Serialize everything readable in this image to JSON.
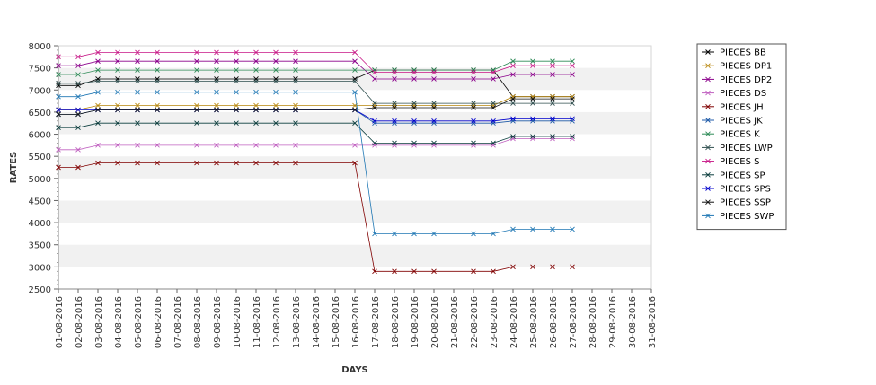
{
  "chart_data": {
    "type": "line",
    "xlabel": "DAYS",
    "ylabel": "RATES",
    "ylim": [
      2500,
      8000
    ],
    "y_ticks": [
      2500,
      3000,
      3500,
      4000,
      4500,
      5000,
      5500,
      6000,
      6500,
      7000,
      7500,
      8000
    ],
    "grid": "alternating horizontal bands",
    "legend_position": "right",
    "x_ticks": [
      "01-08-2016",
      "02-08-2016",
      "03-08-2016",
      "04-08-2016",
      "05-08-2016",
      "06-08-2016",
      "07-08-2016",
      "08-08-2016",
      "09-08-2016",
      "10-08-2016",
      "11-08-2016",
      "12-08-2016",
      "13-08-2016",
      "14-08-2016",
      "15-08-2016",
      "16-08-2016",
      "17-08-2016",
      "18-08-2016",
      "19-08-2016",
      "20-08-2016",
      "21-08-2016",
      "22-08-2016",
      "23-08-2016",
      "24-08-2016",
      "25-08-2016",
      "26-08-2016",
      "27-08-2016",
      "28-08-2016",
      "29-08-2016",
      "30-08-2016",
      "31-08-2016"
    ],
    "x": [
      "01-08-2016",
      "02-08-2016",
      "03-08-2016",
      "04-08-2016",
      "05-08-2016",
      "06-08-2016",
      "08-08-2016",
      "09-08-2016",
      "10-08-2016",
      "11-08-2016",
      "12-08-2016",
      "13-08-2016",
      "16-08-2016",
      "17-08-2016",
      "18-08-2016",
      "19-08-2016",
      "20-08-2016",
      "22-08-2016",
      "23-08-2016",
      "24-08-2016",
      "25-08-2016",
      "26-08-2016",
      "27-08-2016"
    ],
    "series": [
      {
        "name": "PIECES BB",
        "color": "#000000",
        "values": [
          7100,
          7100,
          7250,
          7250,
          7250,
          7250,
          7250,
          7250,
          7250,
          7250,
          7250,
          7250,
          7250,
          7450,
          7450,
          7450,
          7450,
          7450,
          7450,
          6850,
          6850,
          6850,
          6850
        ]
      },
      {
        "name": "PIECES DP1",
        "color": "#b8860b",
        "values": [
          6550,
          6550,
          6650,
          6650,
          6650,
          6650,
          6650,
          6650,
          6650,
          6650,
          6650,
          6650,
          6650,
          6650,
          6650,
          6650,
          6650,
          6650,
          6650,
          6850,
          6850,
          6850,
          6850
        ]
      },
      {
        "name": "PIECES DP2",
        "color": "#8b008b",
        "values": [
          7550,
          7550,
          7650,
          7650,
          7650,
          7650,
          7650,
          7650,
          7650,
          7650,
          7650,
          7650,
          7650,
          7250,
          7250,
          7250,
          7250,
          7250,
          7250,
          7350,
          7350,
          7350,
          7350
        ]
      },
      {
        "name": "PIECES DS",
        "color": "#c060c0",
        "values": [
          5650,
          5650,
          5750,
          5750,
          5750,
          5750,
          5750,
          5750,
          5750,
          5750,
          5750,
          5750,
          5750,
          5750,
          5750,
          5750,
          5750,
          5750,
          5750,
          5900,
          5900,
          5900,
          5900
        ]
      },
      {
        "name": "PIECES JH",
        "color": "#800000",
        "values": [
          5250,
          5250,
          5350,
          5350,
          5350,
          5350,
          5350,
          5350,
          5350,
          5350,
          5350,
          5350,
          5350,
          2900,
          2900,
          2900,
          2900,
          2900,
          2900,
          3000,
          3000,
          3000,
          3000
        ]
      },
      {
        "name": "PIECES JK",
        "color": "#1e5aa8",
        "values": [
          6450,
          6450,
          6550,
          6550,
          6550,
          6550,
          6550,
          6550,
          6550,
          6550,
          6550,
          6550,
          6550,
          6250,
          6250,
          6250,
          6250,
          6250,
          6250,
          6300,
          6300,
          6300,
          6300
        ]
      },
      {
        "name": "PIECES K",
        "color": "#2e8b57",
        "values": [
          7350,
          7350,
          7450,
          7450,
          7450,
          7450,
          7450,
          7450,
          7450,
          7450,
          7450,
          7450,
          7450,
          7450,
          7450,
          7450,
          7450,
          7450,
          7450,
          7650,
          7650,
          7650,
          7650
        ]
      },
      {
        "name": "PIECES LWP",
        "color": "#2f4f4f",
        "values": [
          7150,
          7150,
          7200,
          7200,
          7200,
          7200,
          7200,
          7200,
          7200,
          7200,
          7200,
          7200,
          7200,
          6700,
          6700,
          6700,
          6700,
          6700,
          6700,
          6700,
          6700,
          6700,
          6700
        ]
      },
      {
        "name": "PIECES S",
        "color": "#c71585",
        "values": [
          7750,
          7750,
          7850,
          7850,
          7850,
          7850,
          7850,
          7850,
          7850,
          7850,
          7850,
          7850,
          7850,
          7400,
          7400,
          7400,
          7400,
          7400,
          7400,
          7550,
          7550,
          7550,
          7550
        ]
      },
      {
        "name": "PIECES SP",
        "color": "#0a3d3d",
        "values": [
          6150,
          6150,
          6250,
          6250,
          6250,
          6250,
          6250,
          6250,
          6250,
          6250,
          6250,
          6250,
          6250,
          5800,
          5800,
          5800,
          5800,
          5800,
          5800,
          5950,
          5950,
          5950,
          5950
        ]
      },
      {
        "name": "PIECES SPS",
        "color": "#0000cd",
        "values": [
          6550,
          6550,
          6550,
          6550,
          6550,
          6550,
          6550,
          6550,
          6550,
          6550,
          6550,
          6550,
          6550,
          6300,
          6300,
          6300,
          6300,
          6300,
          6300,
          6350,
          6350,
          6350,
          6350
        ]
      },
      {
        "name": "PIECES SSP",
        "color": "#111111",
        "values": [
          6450,
          6450,
          6550,
          6550,
          6550,
          6550,
          6550,
          6550,
          6550,
          6550,
          6550,
          6550,
          6550,
          6600,
          6600,
          6600,
          6600,
          6600,
          6600,
          6800,
          6800,
          6800,
          6800
        ]
      },
      {
        "name": "PIECES SWP",
        "color": "#1f77b4",
        "values": [
          6850,
          6850,
          6950,
          6950,
          6950,
          6950,
          6950,
          6950,
          6950,
          6950,
          6950,
          6950,
          6950,
          3750,
          3750,
          3750,
          3750,
          3750,
          3750,
          3850,
          3850,
          3850,
          3850
        ]
      }
    ]
  }
}
